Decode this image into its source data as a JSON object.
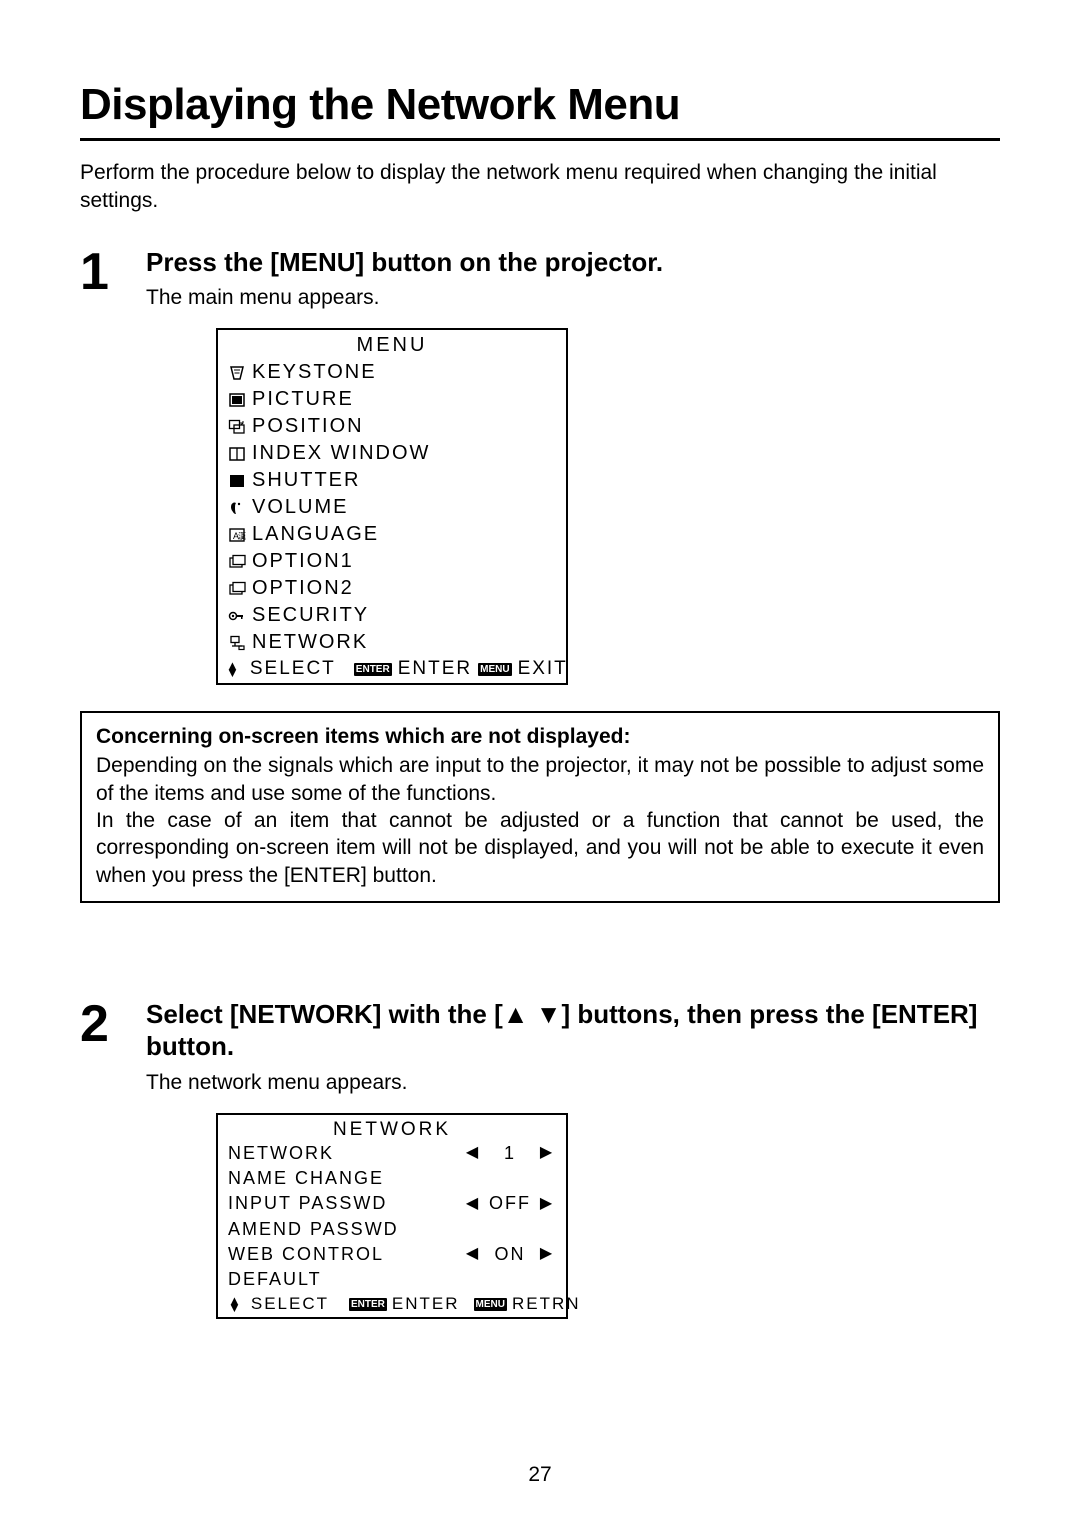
{
  "title": "Displaying the Network Menu",
  "intro": "Perform the procedure below to display the network menu required when changing the initial settings.",
  "step1": {
    "num": "1",
    "head": "Press the [MENU] button on the projector.",
    "sub": "The main menu appears.",
    "menu": {
      "title": "MENU",
      "items": [
        {
          "icon": "keystone-icon",
          "label": "KEYSTONE"
        },
        {
          "icon": "picture-icon",
          "label": "PICTURE"
        },
        {
          "icon": "position-icon",
          "label": "POSITION"
        },
        {
          "icon": "index-icon",
          "label": "INDEX WINDOW"
        },
        {
          "icon": "shutter-icon",
          "label": "SHUTTER"
        },
        {
          "icon": "volume-icon",
          "label": "VOLUME"
        },
        {
          "icon": "language-icon",
          "label": "LANGUAGE"
        },
        {
          "icon": "option1-icon",
          "label": "OPTION1"
        },
        {
          "icon": "option2-icon",
          "label": "OPTION2"
        },
        {
          "icon": "security-icon",
          "label": "SECURITY"
        },
        {
          "icon": "network-icon",
          "label": "NETWORK"
        }
      ],
      "footer": {
        "select": "SELECT",
        "enter_badge": "ENTER",
        "enter": "ENTER",
        "menu_badge": "MENU",
        "exit": "EXIT"
      }
    }
  },
  "note": {
    "head": "Concerning on-screen items which are not displayed:",
    "p1": "Depending on the signals which are input to the projector, it may not be possible to adjust some of the items and use some of the functions.",
    "p2": "In the case of an item that cannot be adjusted or a function that cannot be used, the corresponding on-screen item will not be displayed, and you will not be able to execute it even when you press the [ENTER] button."
  },
  "step2": {
    "num": "2",
    "head": "Select [NETWORK] with the [▲ ▼] buttons, then press the [ENTER] button.",
    "sub": "The network menu appears.",
    "menu": {
      "title": "NETWORK",
      "rows": [
        {
          "label": "NETWORK",
          "has_arrows": true,
          "value": "1"
        },
        {
          "label": "NAME CHANGE",
          "has_arrows": false,
          "value": ""
        },
        {
          "label": "INPUT PASSWD",
          "has_arrows": true,
          "value": "OFF"
        },
        {
          "label": "AMEND PASSWD",
          "has_arrows": false,
          "value": ""
        },
        {
          "label": "WEB CONTROL",
          "has_arrows": true,
          "value": "ON"
        },
        {
          "label": "DEFAULT",
          "has_arrows": false,
          "value": ""
        }
      ],
      "footer": {
        "select": "SELECT",
        "enter_badge": "ENTER",
        "enter": "ENTER",
        "menu_badge": "MENU",
        "retrn": "RETRN"
      }
    }
  },
  "page_number": "27",
  "icons": {
    "keystone-icon": "<svg width='18' height='16' viewBox='0 0 18 16'><path d='M3 2 L15 2 L12 14 L6 14 Z' fill='none' stroke='#000' stroke-width='1.5'/><line x1='6' y1='5' x2='12' y2='5' stroke='#000'/><line x1='6.5' y1='8' x2='11.5' y2='8' stroke='#000'/></svg>",
    "picture-icon": "<svg width='18' height='16' viewBox='0 0 18 16'><rect x='2' y='2' width='14' height='12' fill='none' stroke='#000' stroke-width='1.5'/><rect x='4' y='4' width='10' height='8' fill='#000'/></svg>",
    "position-icon": "<svg width='18' height='16' viewBox='0 0 18 16'><rect x='1.5' y='1.5' width='10' height='8' fill='none' stroke='#000' stroke-width='1.3'/><rect x='6' y='6' width='10' height='8' fill='none' stroke='#000' stroke-width='1.3'/><path d='M12 4 L15 4 L15 2 M15 4 L13 6' fill='none' stroke='#000'/></svg>",
    "index-icon": "<svg width='18' height='16' viewBox='0 0 18 16'><rect x='2' y='2' width='14' height='12' fill='none' stroke='#000' stroke-width='1.5'/><line x1='9' y1='2' x2='9' y2='14' stroke='#000' stroke-width='1.3'/></svg>",
    "shutter-icon": "<svg width='18' height='16' viewBox='0 0 18 16'><rect x='2' y='2' width='14' height='12' fill='#000'/></svg>",
    "volume-icon": "<svg width='18' height='16' viewBox='0 0 18 16'><path d='M5 3 Q3 4 3 7 Q3 10 5 12 Q6 14 8 14 Q7 12 7 8 Q7 4 8 3 Q6 2 5 3 Z' fill='#000'/><circle cx='11' cy='4' r='1.2' fill='#000'/></svg>",
    "language-icon": "<svg width='18' height='16' viewBox='0 0 18 16'><rect x='2' y='2' width='14' height='12' fill='none' stroke='#000' stroke-width='1.4'/><text x='5' y='12' font-size='9' font-family='Arial'>A</text><text x='10' y='12' font-size='8' font-family='Arial'>漢</text></svg>",
    "option1-icon": "<svg width='18' height='16' viewBox='0 0 18 16'><rect x='2' y='4' width='12' height='9' fill='none' stroke='#000' stroke-width='1.3'/><rect x='5' y='1.5' width='12' height='9' fill='#fff' stroke='#000' stroke-width='1.3'/></svg>",
    "option2-icon": "<svg width='18' height='16' viewBox='0 0 18 16'><rect x='2' y='4' width='12' height='9' fill='none' stroke='#000' stroke-width='1.3'/><rect x='5' y='1.5' width='12' height='9' fill='#fff' stroke='#000' stroke-width='1.3'/></svg>",
    "security-icon": "<svg width='18' height='16' viewBox='0 0 18 16'><circle cx='5' cy='8' r='3.5' fill='none' stroke='#000' stroke-width='1.5'/><circle cx='5' cy='8' r='1.2' fill='#000'/><rect x='8' y='7' width='7' height='2' fill='#000'/><rect x='13' y='7' width='1.5' height='4' fill='#000'/></svg>",
    "network-icon": "<svg width='18' height='16' viewBox='0 0 18 16'><rect x='3' y='1.5' width='8' height='6' fill='none' stroke='#000' stroke-width='1.3'/><line x1='7' y1='7.5' x2='7' y2='11' stroke='#000' stroke-width='1.3'/><line x1='4' y1='11' x2='14' y2='11' stroke='#000' stroke-width='1.3'/><rect x='11' y='11' width='5' height='3.5' fill='none' stroke='#000' stroke-width='1.2'/></svg>"
  }
}
